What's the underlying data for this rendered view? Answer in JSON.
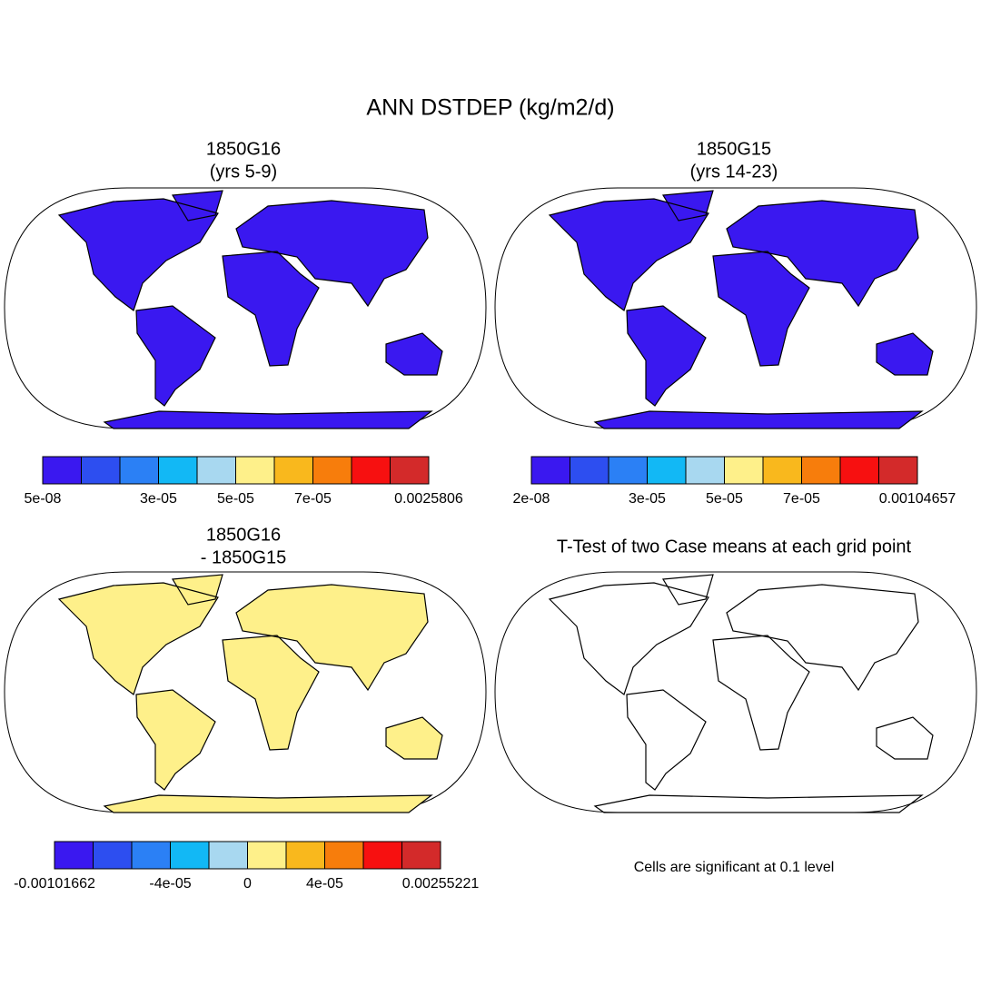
{
  "title": "ANN DSTDEP (kg/m2/d)",
  "panels": [
    {
      "title": [
        "1850G16",
        "(yrs 5-9)"
      ],
      "colorbar": {
        "colors": [
          "#3a18f0",
          "#2d4ef0",
          "#2b80f5",
          "#12b8f5",
          "#a8d8f0",
          "#fef08a",
          "#f9b81d",
          "#f77d0c",
          "#f71010",
          "#d32a2a"
        ],
        "labels": [
          "5e-08",
          "3e-05",
          "5e-05",
          "7e-05",
          "0.0025806"
        ]
      }
    },
    {
      "title": [
        "1850G15",
        "(yrs 14-23)"
      ],
      "colorbar": {
        "colors": [
          "#3a18f0",
          "#2d4ef0",
          "#2b80f5",
          "#12b8f5",
          "#a8d8f0",
          "#fef08a",
          "#f9b81d",
          "#f77d0c",
          "#f71010",
          "#d32a2a"
        ],
        "labels": [
          "2e-08",
          "3e-05",
          "5e-05",
          "7e-05",
          "0.00104657"
        ]
      }
    },
    {
      "title": [
        "1850G16",
        "- 1850G15"
      ],
      "colorbar": {
        "colors": [
          "#3a18f0",
          "#2d4ef0",
          "#2b80f5",
          "#12b8f5",
          "#a8d8f0",
          "#fef08a",
          "#f9b81d",
          "#f77d0c",
          "#f71010",
          "#d32a2a"
        ],
        "labels": [
          "-0.00101662",
          "-4e-05",
          "0",
          "4e-05",
          "0.00255221"
        ]
      }
    },
    {
      "title": [
        "T-Test of two Case means at each grid point"
      ],
      "note": "Cells are significant at 0.1 level"
    }
  ]
}
